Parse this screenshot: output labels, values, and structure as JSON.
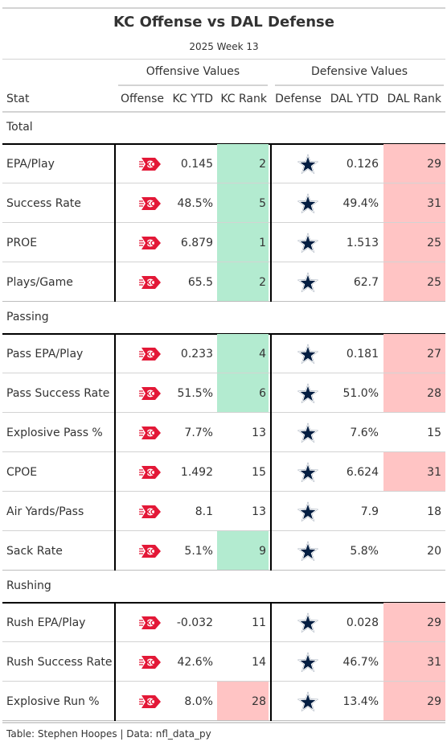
{
  "header": {
    "title": "KC Offense vs DAL Defense",
    "subtitle": "2025 Week 13"
  },
  "spanners": {
    "offense": "Offensive Values",
    "defense": "Defensive Values"
  },
  "columns": {
    "stat": "Stat",
    "offense": "Offense",
    "kc_ytd": "KC YTD",
    "kc_rank": "KC Rank",
    "defense": "Defense",
    "dal_ytd": "DAL YTD",
    "dal_rank": "DAL Rank"
  },
  "icons": {
    "offense": "chiefs-logo-icon",
    "defense": "cowboys-star-icon"
  },
  "colors": {
    "good": "#b3ebd0",
    "bad": "#ffc4c4",
    "chiefs_red": "#e31837",
    "cowboys_navy": "#041e42"
  },
  "chart_data": {
    "type": "table",
    "groups": [
      {
        "name": "Total",
        "rows": [
          {
            "stat": "EPA/Play",
            "kc_ytd": "0.145",
            "kc_rank": 2,
            "dal_ytd": "0.126",
            "dal_rank": 29
          },
          {
            "stat": "Success Rate",
            "kc_ytd": "48.5%",
            "kc_rank": 5,
            "dal_ytd": "49.4%",
            "dal_rank": 31
          },
          {
            "stat": "PROE",
            "kc_ytd": "6.879",
            "kc_rank": 1,
            "dal_ytd": "1.513",
            "dal_rank": 25
          },
          {
            "stat": "Plays/Game",
            "kc_ytd": "65.5",
            "kc_rank": 2,
            "dal_ytd": "62.7",
            "dal_rank": 25
          }
        ]
      },
      {
        "name": "Passing",
        "rows": [
          {
            "stat": "Pass EPA/Play",
            "kc_ytd": "0.233",
            "kc_rank": 4,
            "dal_ytd": "0.181",
            "dal_rank": 27
          },
          {
            "stat": "Pass Success Rate",
            "kc_ytd": "51.5%",
            "kc_rank": 6,
            "dal_ytd": "51.0%",
            "dal_rank": 28
          },
          {
            "stat": "Explosive Pass %",
            "kc_ytd": "7.7%",
            "kc_rank": 13,
            "dal_ytd": "7.6%",
            "dal_rank": 15
          },
          {
            "stat": "CPOE",
            "kc_ytd": "1.492",
            "kc_rank": 15,
            "dal_ytd": "6.624",
            "dal_rank": 31
          },
          {
            "stat": "Air Yards/Pass",
            "kc_ytd": "8.1",
            "kc_rank": 13,
            "dal_ytd": "7.9",
            "dal_rank": 18
          },
          {
            "stat": "Sack Rate",
            "kc_ytd": "5.1%",
            "kc_rank": 9,
            "dal_ytd": "5.8%",
            "dal_rank": 20
          }
        ]
      },
      {
        "name": "Rushing",
        "rows": [
          {
            "stat": "Rush EPA/Play",
            "kc_ytd": "-0.032",
            "kc_rank": 11,
            "dal_ytd": "0.028",
            "dal_rank": 29
          },
          {
            "stat": "Rush Success Rate",
            "kc_ytd": "42.6%",
            "kc_rank": 14,
            "dal_ytd": "46.7%",
            "dal_rank": 31
          },
          {
            "stat": "Explosive Run %",
            "kc_ytd": "8.0%",
            "kc_rank": 28,
            "dal_ytd": "13.4%",
            "dal_rank": 29
          }
        ]
      }
    ]
  },
  "footer": {
    "caption": "Table: Stephen Hoopes | Data: nfl_data_py"
  }
}
